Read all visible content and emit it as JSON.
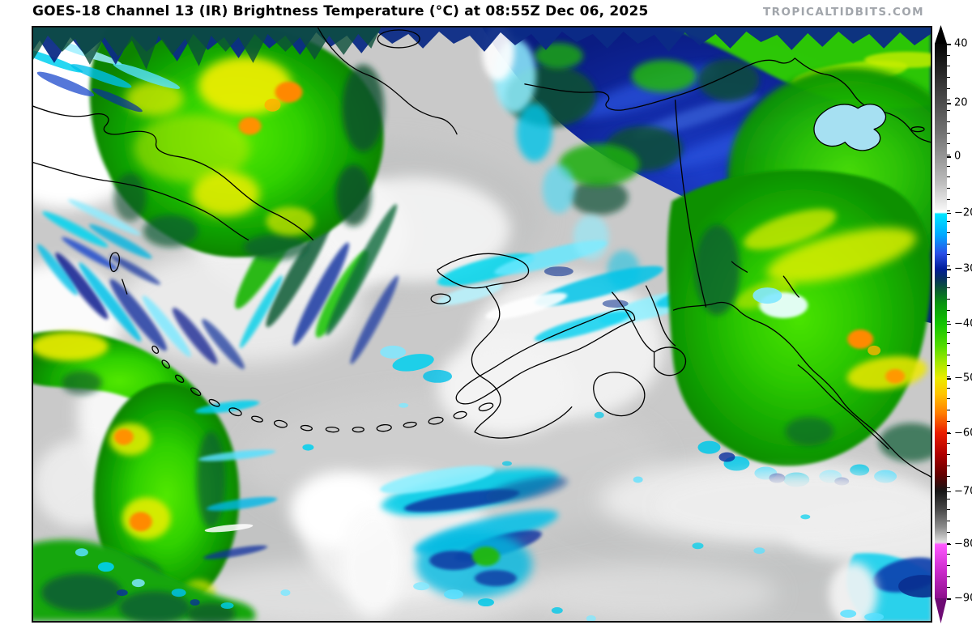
{
  "header": {
    "title": "GOES-18 Channel 13 (IR) Brightness Temperature (°C) at 08:55Z Dec 06, 2025",
    "watermark": "TROPICALTIDBITS.COM"
  },
  "map": {
    "satellite": "GOES-18",
    "channel": "Channel 13 (IR)",
    "quantity": "Brightness Temperature",
    "unit": "°C",
    "valid_time": "08:55Z Dec 06, 2025",
    "region_depicted": "Alaska, Bering Sea and Gulf of Alaska sector"
  },
  "colorbar": {
    "unit": "°C",
    "max": 40,
    "min": -90,
    "orientation": "vertical",
    "arrow_top_color": "#000000",
    "arrow_bottom_color": "#6e0b74",
    "minor_tick_count": 50,
    "major_ticks": [
      {
        "label": "40",
        "t": 0.0
      },
      {
        "label": "20",
        "t": 0.107
      },
      {
        "label": "0",
        "t": 0.203
      },
      {
        "label": "−20",
        "t": 0.305
      },
      {
        "label": "−30",
        "t": 0.406
      },
      {
        "label": "−40",
        "t": 0.505
      },
      {
        "label": "−50",
        "t": 0.603
      },
      {
        "label": "−60",
        "t": 0.702
      },
      {
        "label": "−70",
        "t": 0.807
      },
      {
        "label": "−80",
        "t": 0.902
      },
      {
        "label": "−90",
        "t": 1.0
      }
    ],
    "gradient_stops": [
      {
        "t": 0.0,
        "color": "#050505"
      },
      {
        "t": 0.05,
        "color": "#262626"
      },
      {
        "t": 0.107,
        "color": "#4e4e4e"
      },
      {
        "t": 0.155,
        "color": "#6e6e6e"
      },
      {
        "t": 0.203,
        "color": "#959595"
      },
      {
        "t": 0.252,
        "color": "#bfbfbf"
      },
      {
        "t": 0.298,
        "color": "#f5f5f5"
      },
      {
        "t": 0.304,
        "color": "#ffffff"
      },
      {
        "t": 0.307,
        "color": "#00e6ff"
      },
      {
        "t": 0.345,
        "color": "#00a8ff"
      },
      {
        "t": 0.378,
        "color": "#2b50e8"
      },
      {
        "t": 0.406,
        "color": "#001c99"
      },
      {
        "t": 0.424,
        "color": "#06315f"
      },
      {
        "t": 0.443,
        "color": "#0a5a33"
      },
      {
        "t": 0.468,
        "color": "#089410"
      },
      {
        "t": 0.505,
        "color": "#12c400"
      },
      {
        "t": 0.545,
        "color": "#52dc00"
      },
      {
        "t": 0.576,
        "color": "#a8e800"
      },
      {
        "t": 0.603,
        "color": "#ecec00"
      },
      {
        "t": 0.632,
        "color": "#ffc400"
      },
      {
        "t": 0.666,
        "color": "#ff7e00"
      },
      {
        "t": 0.702,
        "color": "#ea1d00"
      },
      {
        "t": 0.74,
        "color": "#b00000"
      },
      {
        "t": 0.776,
        "color": "#660000"
      },
      {
        "t": 0.807,
        "color": "#161616"
      },
      {
        "t": 0.84,
        "color": "#4a4a4a"
      },
      {
        "t": 0.872,
        "color": "#8d8d8d"
      },
      {
        "t": 0.899,
        "color": "#dedede"
      },
      {
        "t": 0.903,
        "color": "#ff5aff"
      },
      {
        "t": 0.95,
        "color": "#cc2bcc"
      },
      {
        "t": 1.0,
        "color": "#8c108c"
      }
    ]
  },
  "colors": {
    "page_background": "#ffffff",
    "title_text": "#000000",
    "watermark_text": "#a1a5ab",
    "map_border": "#111111",
    "warm_cloud_base_gray": "#c9c9c9",
    "ir_palette_examples": {
      "cold_cyan": "#00e6ff",
      "cold_navy": "#001c99",
      "cold_green": "#12c400",
      "cold_yellow": "#ecec00",
      "cold_orange": "#ff7e00",
      "cold_red": "#ea1d00",
      "coldest_magenta": "#cc2bcc"
    }
  }
}
